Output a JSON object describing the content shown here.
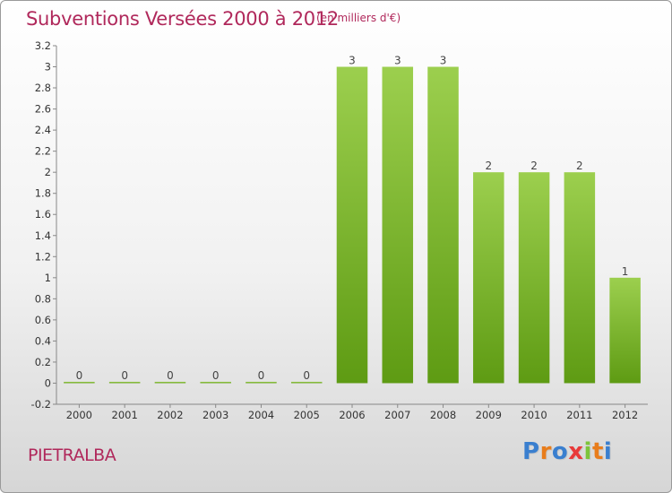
{
  "header": {
    "title": "Subventions Versées 2000 à 2012",
    "subtitle": "(en milliers d'€)"
  },
  "footer": {
    "commune": "PIETRALBA",
    "logo_text": "Proxiti"
  },
  "colors": {
    "title": "#b0285b",
    "bar_top": "#9ccf4e",
    "bar_bottom": "#5e9b13",
    "logo_letters": [
      "#3a7fcf",
      "#e87d1c",
      "#3a7fcf",
      "#e83a3a",
      "#7cc43a",
      "#e87d1c",
      "#3a7fcf"
    ]
  },
  "chart_data": {
    "type": "bar",
    "categories": [
      "2000",
      "2001",
      "2002",
      "2003",
      "2004",
      "2005",
      "2006",
      "2007",
      "2008",
      "2009",
      "2010",
      "2011",
      "2012"
    ],
    "values": [
      0,
      0,
      0,
      0,
      0,
      0,
      3,
      3,
      3,
      2,
      2,
      2,
      1
    ],
    "value_labels": [
      "0",
      "0",
      "0",
      "0",
      "0",
      "0",
      "3",
      "3",
      "3",
      "2",
      "2",
      "2",
      "1"
    ],
    "yticks": [
      "-0.2",
      "0",
      "0.2",
      "0.4",
      "0.6",
      "0.8",
      "1",
      "1.2",
      "1.4",
      "1.6",
      "1.8",
      "2",
      "2.2",
      "2.4",
      "2.6",
      "2.8",
      "3",
      "3.2"
    ],
    "ylim": [
      -0.2,
      3.2
    ],
    "grid": false
  }
}
